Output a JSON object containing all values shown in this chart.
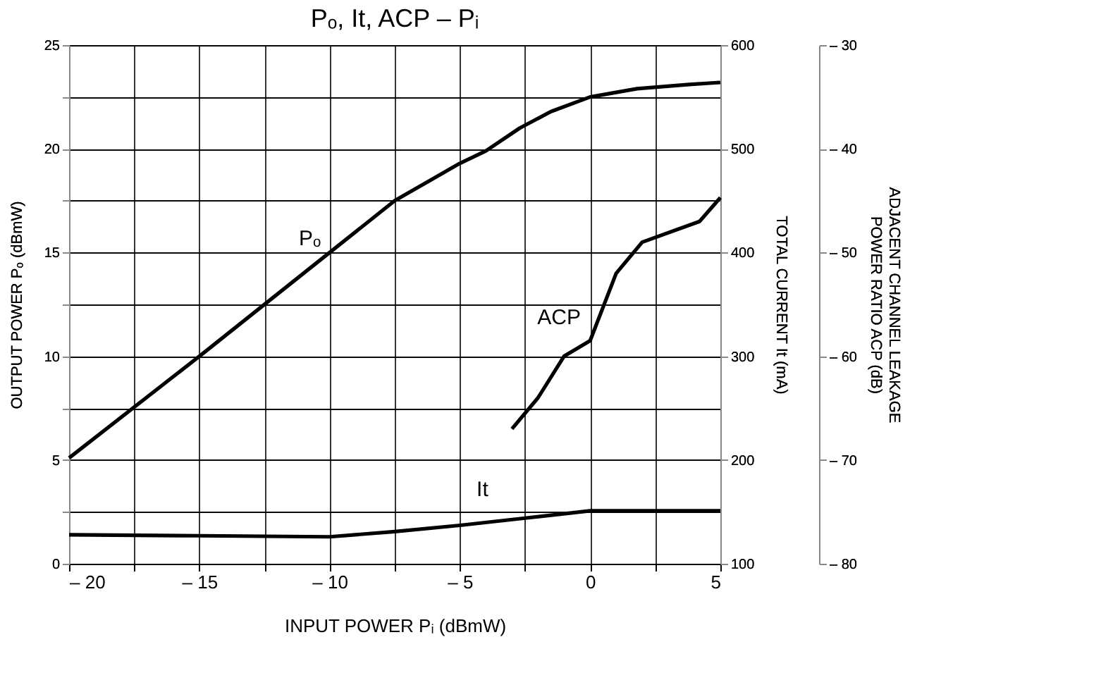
{
  "chart_data": {
    "type": "line",
    "title": "Pₒ, It, ACP – Pᵢ",
    "xlabel": "INPUT POWER   Pᵢ   (dBmW)",
    "ylabel": "OUTPUT POWER   Pₒ   (dBmW)",
    "y2label": "TOTAL CURRENT   It   (mA)",
    "y3label": [
      "ADJACENT CHANNEL LEAKAGE",
      "POWER RATIO   ACP   (dB)"
    ],
    "xlim": [
      -20,
      5
    ],
    "xticks": [
      {
        "value": -20,
        "label": "– 20"
      },
      {
        "value": -17.5,
        "label": null
      },
      {
        "value": -15,
        "label": "– 15"
      },
      {
        "value": -12.5,
        "label": null
      },
      {
        "value": -10,
        "label": "– 10"
      },
      {
        "value": -7.5,
        "label": null
      },
      {
        "value": -5,
        "label": "– 5"
      },
      {
        "value": -2.5,
        "label": null
      },
      0,
      {
        "value": 2.5,
        "label": null
      },
      5
    ],
    "ylim": [
      0,
      25
    ],
    "yticks": [
      0,
      {
        "value": 2.5,
        "label": null
      },
      5,
      {
        "value": 7.5,
        "label": null
      },
      10,
      {
        "value": 12.5,
        "label": null
      },
      15,
      {
        "value": 17.5,
        "label": null
      },
      20,
      {
        "value": 22.5,
        "label": null
      },
      25
    ],
    "y2lim": [
      100,
      600
    ],
    "y2ticks": [
      100,
      200,
      300,
      400,
      500,
      600
    ],
    "y3lim": [
      -80,
      -30
    ],
    "y3ticks": [
      {
        "value": -30,
        "label": "– 30"
      },
      {
        "value": -40,
        "label": "– 40"
      },
      {
        "value": -50,
        "label": "– 50"
      },
      {
        "value": -60,
        "label": "– 60"
      },
      {
        "value": -70,
        "label": "– 70"
      },
      {
        "value": -80,
        "label": "– 80"
      }
    ],
    "grid": true,
    "marker": "none",
    "line_style": "solid",
    "series": [
      {
        "name": "Pₒ",
        "color": "#000000",
        "x": [
          -20,
          -15,
          -10,
          -7.5,
          -5,
          -4,
          -2.7,
          -1.5,
          0,
          1.8,
          3.8,
          5
        ],
        "values": [
          5.1,
          10,
          15,
          17.5,
          19.3,
          19.9,
          21,
          21.8,
          22.5,
          22.9,
          23.1,
          23.2
        ]
      },
      {
        "name": "It",
        "color": "#000000",
        "axis": "y2",
        "x": [
          -20,
          -15,
          -10,
          -7.5,
          -5,
          -2.5,
          0,
          5
        ],
        "values": [
          128,
          127,
          126,
          131,
          137,
          144,
          151,
          151
        ]
      },
      {
        "name": "ACP",
        "color": "#000000",
        "axis": "y3",
        "x": [
          -3,
          -2,
          -1,
          0,
          1,
          2,
          4.2,
          5
        ],
        "values": [
          -67,
          -64,
          -60,
          -58.5,
          -52,
          -49,
          -47,
          -44.7
        ]
      }
    ]
  }
}
